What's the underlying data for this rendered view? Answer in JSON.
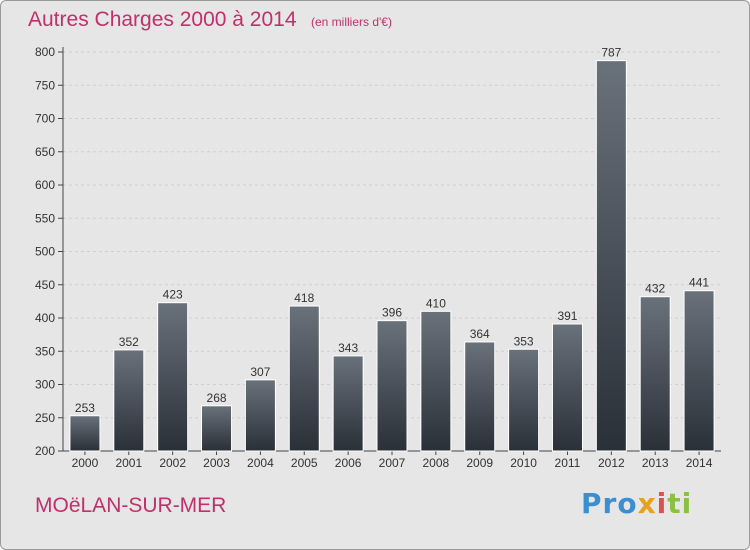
{
  "header": {
    "title": "Autres Charges 2000 à 2014",
    "subtitle": "(en milliers d'€)"
  },
  "footer": {
    "place": "MOëLAN-SUR-MER",
    "logo": "Proxiti"
  },
  "colors": {
    "title": "#c0306a",
    "bar_top": "#69717b",
    "bar_bottom": "#2a3038",
    "background": "#e6e6e6"
  },
  "chart_data": {
    "type": "bar",
    "categories": [
      "2000",
      "2001",
      "2002",
      "2003",
      "2004",
      "2005",
      "2006",
      "2007",
      "2008",
      "2009",
      "2010",
      "2011",
      "2012",
      "2013",
      "2014"
    ],
    "values": [
      253,
      352,
      423,
      268,
      307,
      418,
      343,
      396,
      410,
      364,
      353,
      391,
      787,
      432,
      441
    ],
    "title": "Autres Charges 2000 à 2014",
    "ylim": [
      200,
      800
    ],
    "yticks": [
      200,
      250,
      300,
      350,
      400,
      450,
      500,
      550,
      600,
      650,
      700,
      750,
      800
    ],
    "grid": true,
    "data_labels": true
  }
}
